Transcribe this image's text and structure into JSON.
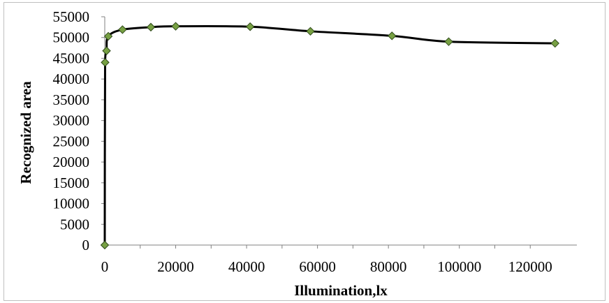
{
  "chart_data": {
    "type": "scatter",
    "title": "",
    "xlabel": "Illumination,lx",
    "ylabel": "Recognized area",
    "xlim": [
      0,
      130000
    ],
    "ylim": [
      0,
      55000
    ],
    "x_ticks": [
      0,
      20000,
      40000,
      60000,
      80000,
      100000,
      120000
    ],
    "y_ticks": [
      0,
      5000,
      10000,
      15000,
      20000,
      25000,
      30000,
      35000,
      40000,
      45000,
      50000,
      55000
    ],
    "grid": false,
    "legend": "none",
    "line_style": "smooth",
    "marker": "diamond",
    "colors": {
      "line": "#000000",
      "marker_fill": "#77a043",
      "marker_edge": "#2f4a1a",
      "frame": "#bfbfbf"
    },
    "series": [
      {
        "x": [
          0,
          100,
          500,
          1000,
          5000,
          13000,
          20000,
          41000,
          58000,
          81000,
          97000,
          127000
        ],
        "y": [
          0,
          44000,
          46800,
          50300,
          51900,
          52500,
          52700,
          52600,
          51500,
          50400,
          49000,
          48600
        ]
      }
    ]
  }
}
